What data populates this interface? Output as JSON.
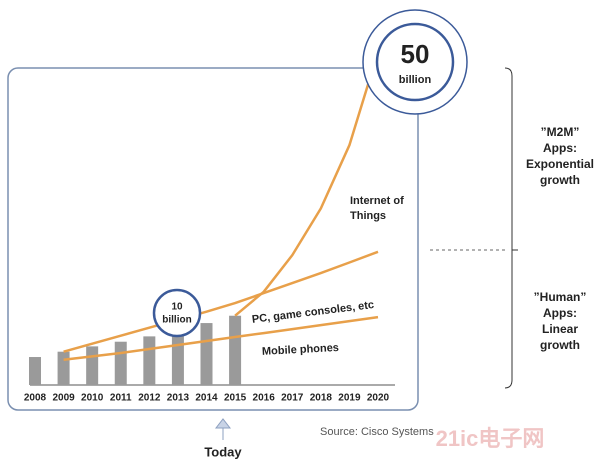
{
  "chart_data": {
    "type": "bar-line",
    "categories": [
      "2008",
      "2009",
      "2010",
      "2011",
      "2012",
      "2013",
      "2014",
      "2015",
      "2016",
      "2017",
      "2018",
      "2019",
      "2020"
    ],
    "values": [
      4.2,
      5,
      5.8,
      6.5,
      7.3,
      8.2,
      9.3,
      10.4,
      null,
      null,
      null,
      null,
      null
    ],
    "color": "#9a9a9a",
    "ylim": [
      0,
      50
    ],
    "series": [
      {
        "name": "Internet of Things",
        "color": "#e8a04a",
        "values": [
          null,
          null,
          null,
          null,
          null,
          null,
          null,
          10.4,
          14,
          19.5,
          26.5,
          36,
          50
        ]
      },
      {
        "name": "PC, game consoles, etc",
        "color": "#e8a04a",
        "values": [
          null,
          5,
          6.2,
          7.4,
          8.6,
          9.8,
          11,
          12.3,
          13.8,
          15.3,
          16.8,
          18.4,
          20
        ]
      },
      {
        "name": "Mobile phones",
        "color": "#e8a04a",
        "values": [
          null,
          3.8,
          4.3,
          4.8,
          5.4,
          6,
          6.6,
          7.2,
          7.8,
          8.4,
          9,
          9.6,
          10.2
        ]
      }
    ],
    "annotations": {
      "big_circle": [
        "50",
        "billion"
      ],
      "small_circle": [
        "10",
        "billion"
      ],
      "m2m": [
        "”M2M”",
        "Apps:",
        "Exponential",
        "growth"
      ],
      "human": [
        "”Human”",
        "Apps:",
        "Linear",
        "growth"
      ],
      "today": "Today",
      "source": "Source: Cisco Systems",
      "watermark": "21ic电子网"
    }
  }
}
